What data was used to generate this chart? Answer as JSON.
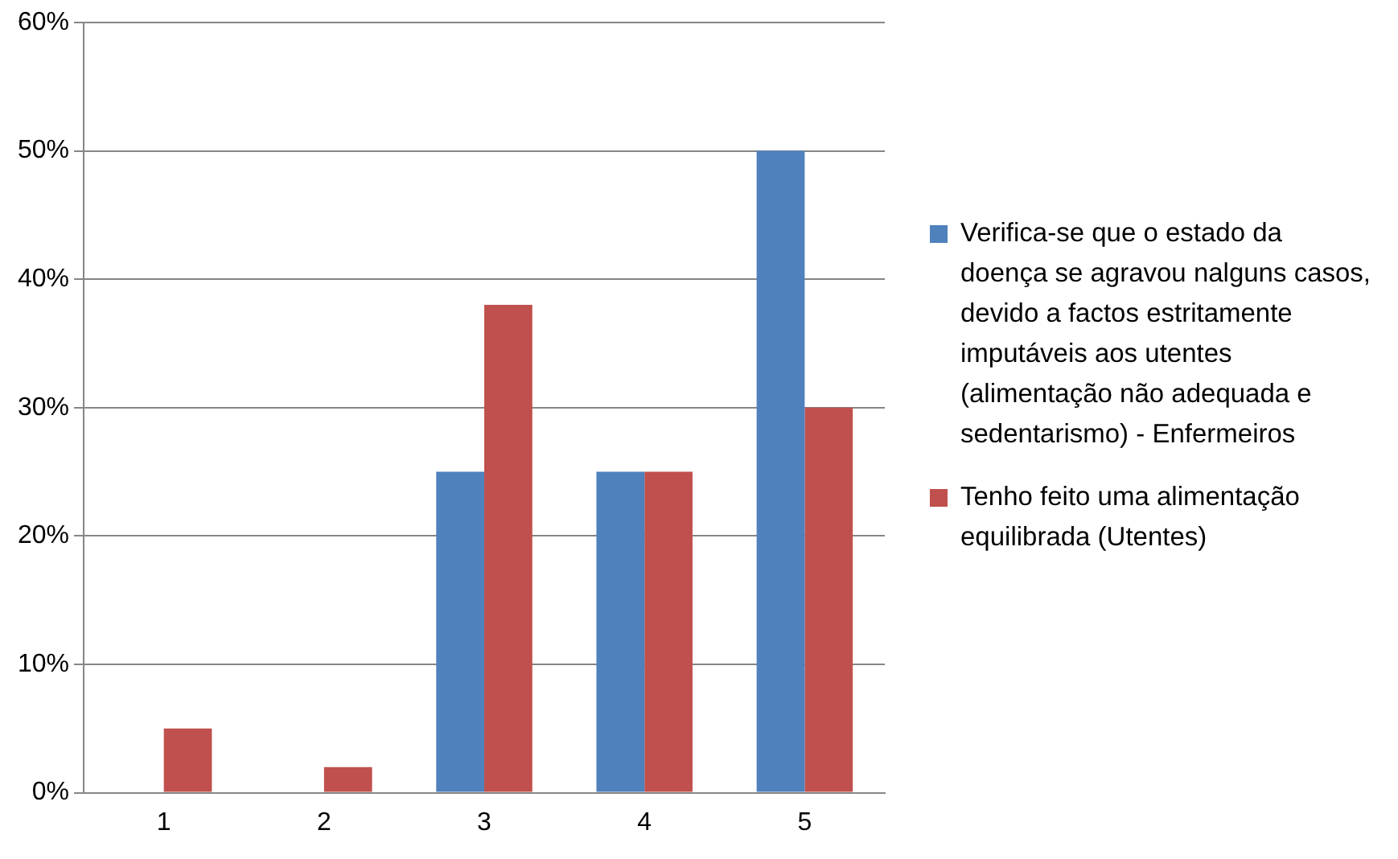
{
  "chart_data": {
    "type": "bar",
    "categories": [
      "1",
      "2",
      "3",
      "4",
      "5"
    ],
    "series": [
      {
        "name": "Verifica-se que o estado da doença se agravou nalguns casos, devido a factos estritamente imputáveis aos utentes (alimentação não adequada e sedentarismo)  - Enfermeiros",
        "color": "#4f81bd",
        "values": [
          0,
          0,
          25,
          25,
          50
        ]
      },
      {
        "name": "Tenho feito uma alimentação equilibrada (Utentes)",
        "color": "#c0504d",
        "values": [
          5,
          2,
          38,
          25,
          30
        ]
      }
    ],
    "ylim": [
      0,
      60
    ],
    "yticks": [
      {
        "value": 0,
        "label": "0%"
      },
      {
        "value": 10,
        "label": "10%"
      },
      {
        "value": 20,
        "label": "20%"
      },
      {
        "value": 30,
        "label": "30%"
      },
      {
        "value": 40,
        "label": "40%"
      },
      {
        "value": 50,
        "label": "50%"
      },
      {
        "value": 60,
        "label": "60%"
      }
    ],
    "grid": "y",
    "legend": "right"
  }
}
